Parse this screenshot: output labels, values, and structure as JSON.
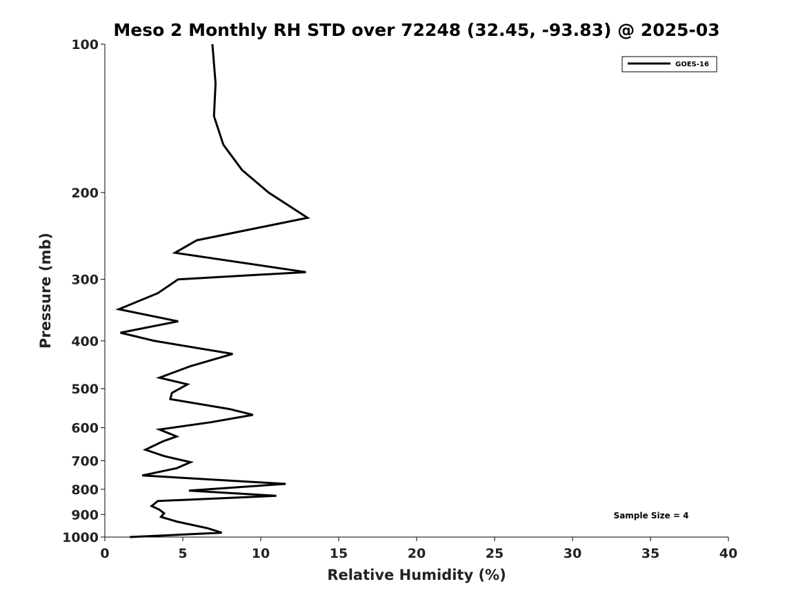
{
  "chart_data": {
    "type": "line",
    "title": "Meso 2 Monthly RH STD over 72248 (32.45, -93.83) @ 2025-03",
    "xlabel": "Relative Humidity (%)",
    "ylabel": "Pressure (mb)",
    "xlim": [
      0,
      40
    ],
    "ylim": [
      1000,
      100
    ],
    "y_scale": "log",
    "y_inverted": true,
    "grid": false,
    "legend_position": "top-right",
    "x_ticks": [
      0,
      5,
      10,
      15,
      20,
      25,
      30,
      35,
      40
    ],
    "y_ticks": [
      100,
      200,
      300,
      400,
      500,
      600,
      700,
      800,
      900,
      1000
    ],
    "series": [
      {
        "name": "GOES-16",
        "color": "#000000",
        "x": [
          6.9,
          7.1,
          7.0,
          7.6,
          8.8,
          10.5,
          13.0,
          5.9,
          4.5,
          12.9,
          4.7,
          3.4,
          0.9,
          4.7,
          1.0,
          3.2,
          8.2,
          5.5,
          3.5,
          5.3,
          4.3,
          4.2,
          8.0,
          9.5,
          6.8,
          3.5,
          4.6,
          3.7,
          2.6,
          3.8,
          5.5,
          4.6,
          2.4,
          11.6,
          5.4,
          11.0,
          3.4,
          3.0,
          3.5,
          3.8,
          3.6,
          4.6,
          6.6,
          7.5,
          1.6
        ],
        "y": [
          100,
          120,
          140,
          160,
          180,
          200,
          225,
          250,
          265,
          290,
          300,
          320,
          345,
          365,
          385,
          400,
          425,
          450,
          475,
          490,
          510,
          525,
          550,
          565,
          585,
          605,
          625,
          640,
          665,
          685,
          705,
          725,
          750,
          780,
          805,
          825,
          845,
          865,
          880,
          895,
          910,
          930,
          960,
          980,
          1000
        ]
      }
    ],
    "annotations": [
      "Sample Size = 4"
    ]
  }
}
